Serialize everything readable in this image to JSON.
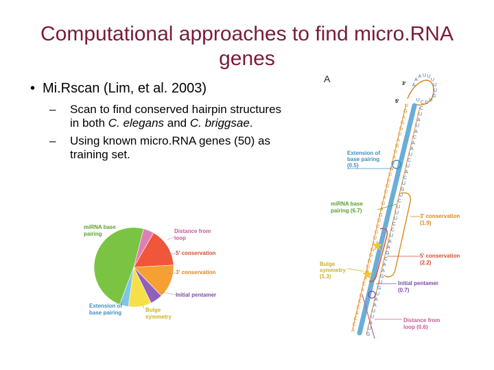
{
  "slide": {
    "title_line1": "Computational approaches to find micro.RNA",
    "title_line2": "genes",
    "bullet": "Mi.Rscan (Lim, et al. 2003)",
    "sub1_line1": "Scan to find conserved hairpin structures",
    "sub1_line2_pre": "in both ",
    "sub1_line2_italic1": "C. elegans",
    "sub1_line2_mid": " and ",
    "sub1_line2_italic2": "C. briggsae",
    "sub1_line2_post": ".",
    "sub2_line1": "Using known micro.RNA genes (50) as",
    "sub2_line2": "training set."
  },
  "chart_data": {
    "type": "pie",
    "labels": [
      "miRNA base pairing",
      "Distance from loop",
      "5' conservation",
      "3' conservation",
      "Initial pentamer",
      "Bulge symmetry",
      "Extension of base pairing"
    ],
    "values": [
      6.7,
      0.6,
      2.2,
      1.9,
      0.7,
      1.3,
      0.5
    ],
    "colors": [
      "#7bc443",
      "#e07fb5",
      "#f0563a",
      "#f6a033",
      "#9060ba",
      "#f5e04a",
      "#7ec6e8"
    ],
    "label_colors": [
      "#5aa02e",
      "#c45a97",
      "#d64a2c",
      "#d9861c",
      "#7a4aa6",
      "#c9b21a",
      "#3b8fc0"
    ]
  },
  "figure": {
    "panel_letter": "A",
    "three_prime_end": "3'",
    "five_prime_end": "5'",
    "labels": [
      {
        "line1": "Extension of",
        "line2": "base pairing",
        "value": "(0.5)"
      },
      {
        "line1": "miRNA base",
        "line2": "pairing",
        "value": "(6.7)"
      },
      {
        "line1": "3' conservation",
        "line2": "",
        "value": "(1.9)"
      },
      {
        "line1": "5' conservation",
        "line2": "",
        "value": "(2.2)"
      },
      {
        "line1": "Bulge",
        "line2": "symmetry",
        "value": "(1.3)"
      },
      {
        "line1": "Initial pentamer",
        "line2": "",
        "value": "(0.7)"
      },
      {
        "line1": "Distance from",
        "line2": "loop",
        "value": "(0.6)"
      }
    ]
  }
}
